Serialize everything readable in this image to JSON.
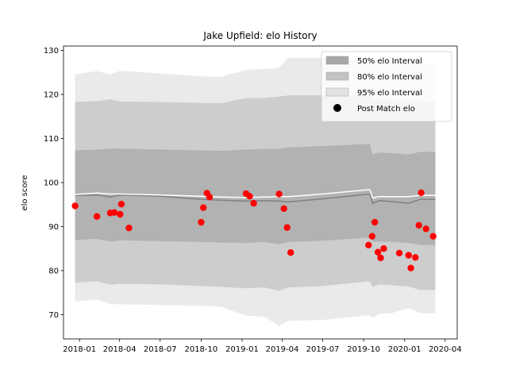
{
  "chart_data": {
    "type": "line",
    "title": "Jake Upfield: elo History",
    "xlabel": "",
    "ylabel": "elo score",
    "xlim": [
      "2017-11-26",
      "2020-04-28"
    ],
    "ylim": [
      64.5,
      131
    ],
    "x_ticks": [
      "2018-01",
      "2018-04",
      "2018-07",
      "2018-10",
      "2019-01",
      "2019-04",
      "2019-07",
      "2019-10",
      "2020-01",
      "2020-04"
    ],
    "y_ticks": [
      70,
      80,
      90,
      100,
      110,
      120,
      130
    ],
    "grid": false,
    "legend_position": "top-right",
    "legend": [
      {
        "label": "50% elo Interval",
        "kind": "patch",
        "color": "#a8a8a8"
      },
      {
        "label": "80% elo Interval",
        "kind": "patch",
        "color": "#c3c3c3"
      },
      {
        "label": "95% elo Interval",
        "kind": "patch",
        "color": "#e3e3e3"
      },
      {
        "label": "Post Match elo",
        "kind": "marker",
        "color": "#000000"
      }
    ],
    "colors": {
      "band_50": "#a8a8a8",
      "band_80": "#c3c3c3",
      "band_95": "#e3e3e3",
      "mean_line": "#808080",
      "median_line": "#ffffff",
      "points": "#ff0000"
    },
    "band_x": [
      "2017-12-22",
      "2018-02-09",
      "2018-03-11",
      "2018-04-02",
      "2018-07-01",
      "2018-10-01",
      "2018-11-15",
      "2019-01-10",
      "2019-02-20",
      "2019-03-25",
      "2019-04-15",
      "2019-07-01",
      "2019-10-15",
      "2019-10-21",
      "2019-11-05",
      "2019-12-01",
      "2020-01-10",
      "2020-02-05",
      "2020-03-10"
    ],
    "series": [
      {
        "name": "95% elo Interval",
        "lower": [
          73.0,
          73.5,
          72.4,
          72.4,
          72.2,
          72.0,
          71.8,
          69.8,
          69.6,
          67.4,
          68.6,
          68.8,
          69.9,
          69.2,
          70.2,
          70.3,
          71.5,
          70.3,
          70.3
        ],
        "upper": [
          124.6,
          125.3,
          124.6,
          125.4,
          124.8,
          124.1,
          124.0,
          125.6,
          125.8,
          126.1,
          128.3,
          128.3,
          128.3,
          127.2,
          128.0,
          127.8,
          127.5,
          127.2,
          127.1
        ]
      },
      {
        "name": "80% elo Interval",
        "lower": [
          77.3,
          77.6,
          76.8,
          77.0,
          76.9,
          76.5,
          76.3,
          76.0,
          76.2,
          75.4,
          76.2,
          76.5,
          77.6,
          76.3,
          76.9,
          76.7,
          76.4,
          75.6,
          75.6
        ],
        "upper": [
          118.3,
          118.5,
          118.9,
          118.4,
          118.3,
          118.1,
          118.0,
          119.2,
          119.2,
          119.5,
          119.8,
          119.8,
          119.8,
          118.7,
          118.9,
          118.8,
          118.6,
          118.4,
          118.3
        ]
      },
      {
        "name": "50% elo Interval",
        "lower": [
          87.0,
          87.2,
          86.6,
          86.9,
          86.7,
          86.5,
          86.4,
          86.3,
          86.5,
          86.0,
          86.5,
          86.8,
          87.5,
          86.6,
          86.6,
          86.6,
          86.3,
          85.8,
          85.8
        ],
        "upper": [
          107.3,
          107.5,
          107.7,
          107.7,
          107.5,
          107.3,
          107.2,
          107.5,
          107.6,
          107.6,
          108.0,
          108.3,
          108.8,
          106.4,
          106.8,
          106.7,
          106.4,
          107.0,
          107.0
        ]
      },
      {
        "name": "mean",
        "values": [
          97.1,
          97.2,
          96.7,
          97.2,
          96.9,
          96.2,
          96.0,
          95.8,
          95.9,
          95.8,
          95.6,
          96.3,
          97.4,
          95.3,
          95.9,
          95.7,
          95.3,
          96.2,
          96.2
        ]
      },
      {
        "name": "median",
        "values": [
          97.3,
          97.6,
          97.4,
          97.4,
          97.2,
          96.9,
          96.7,
          96.6,
          96.7,
          96.8,
          96.8,
          97.4,
          98.4,
          96.5,
          96.8,
          96.8,
          96.8,
          97.1,
          97.1
        ]
      },
      {
        "name": "Post Match elo",
        "x": [
          "2017-12-22",
          "2018-02-09",
          "2018-03-11",
          "2018-03-20",
          "2018-04-02",
          "2018-04-05",
          "2018-04-22",
          "2018-10-01",
          "2018-10-06",
          "2018-10-14",
          "2018-10-20",
          "2019-01-10",
          "2019-01-18",
          "2019-01-27",
          "2019-03-25",
          "2019-04-05",
          "2019-04-12",
          "2019-04-20",
          "2019-10-12",
          "2019-10-20",
          "2019-10-26",
          "2019-11-02",
          "2019-11-08",
          "2019-11-15",
          "2019-12-20",
          "2020-01-10",
          "2020-01-15",
          "2020-01-25",
          "2020-02-02",
          "2020-02-07",
          "2020-02-18",
          "2020-03-05"
        ],
        "y": [
          94.7,
          92.3,
          93.1,
          93.2,
          92.8,
          95.1,
          89.7,
          91.0,
          94.3,
          97.6,
          96.7,
          97.5,
          96.9,
          95.3,
          97.4,
          94.1,
          89.8,
          84.1,
          85.8,
          87.8,
          91.0,
          84.2,
          82.9,
          85.0,
          84.0,
          83.5,
          80.6,
          83.0,
          90.3,
          97.7,
          89.5,
          87.8
        ]
      }
    ]
  }
}
